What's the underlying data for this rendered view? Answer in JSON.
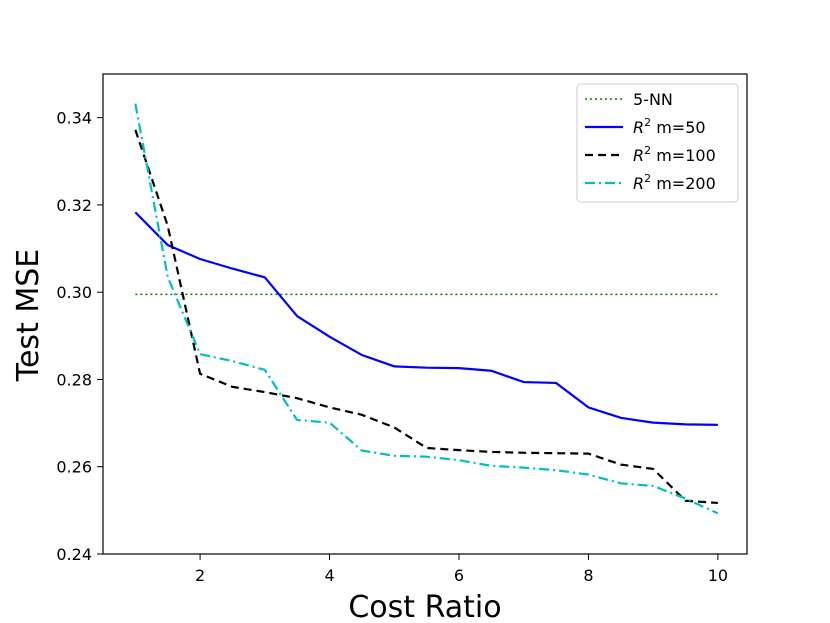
{
  "chart_data": {
    "type": "line",
    "title": "",
    "xlabel": "Cost Ratio",
    "ylabel": "Test MSE",
    "xlim": [
      0.5,
      10.45
    ],
    "ylim": [
      0.24,
      0.35
    ],
    "xticks": [
      2,
      4,
      6,
      8,
      10
    ],
    "xtick_labels": [
      "2",
      "4",
      "6",
      "8",
      "10"
    ],
    "yticks": [
      0.24,
      0.26,
      0.28,
      0.3,
      0.32,
      0.34
    ],
    "ytick_labels": [
      "0.24",
      "0.26",
      "0.28",
      "0.30",
      "0.32",
      "0.34"
    ],
    "grid": false,
    "legend_position": "top-right",
    "series": [
      {
        "name": "5-NN",
        "legend_prefix": "",
        "legend_suffix": "5-NN",
        "color": "#008000",
        "style": "dotted",
        "x": [
          1,
          10
        ],
        "values": [
          0.2995,
          0.2995
        ]
      },
      {
        "name": "R^2 m=50",
        "legend_prefix": "R",
        "legend_sup": "2",
        "legend_suffix": " m=50",
        "color": "#0000ff",
        "style": "solid",
        "x": [
          1,
          1.5,
          2,
          2.5,
          3,
          3.5,
          4,
          4.5,
          5,
          5.5,
          6,
          6.5,
          7,
          7.5,
          8,
          8.5,
          9,
          9.5,
          10
        ],
        "values": [
          0.3183,
          0.3108,
          0.3076,
          0.3054,
          0.3034,
          0.2945,
          0.2898,
          0.2856,
          0.283,
          0.2827,
          0.2826,
          0.282,
          0.2794,
          0.2792,
          0.2736,
          0.2712,
          0.2701,
          0.2697,
          0.2696
        ]
      },
      {
        "name": "R^2 m=100",
        "legend_prefix": "R",
        "legend_sup": "2",
        "legend_suffix": " m=100",
        "color": "#000000",
        "style": "dashed",
        "x": [
          1,
          1.5,
          2,
          2.5,
          3,
          3.5,
          4,
          4.5,
          5,
          5.5,
          6,
          6.5,
          7,
          7.5,
          8,
          8.5,
          9,
          9.5,
          10
        ],
        "values": [
          0.3372,
          0.3152,
          0.2813,
          0.2783,
          0.2771,
          0.2757,
          0.2736,
          0.2719,
          0.269,
          0.2643,
          0.2638,
          0.2634,
          0.2632,
          0.2631,
          0.263,
          0.2605,
          0.2595,
          0.2522,
          0.2517
        ]
      },
      {
        "name": "R^2 m=200",
        "legend_prefix": "R",
        "legend_sup": "2",
        "legend_suffix": " m=200",
        "color": "#00bfbf",
        "style": "dashdot",
        "x": [
          1,
          1.5,
          2,
          2.5,
          3,
          3.5,
          4,
          4.5,
          5,
          5.5,
          6,
          6.5,
          7,
          7.5,
          8,
          8.5,
          9,
          9.5,
          10
        ],
        "values": [
          0.3432,
          0.3035,
          0.2858,
          0.2842,
          0.2822,
          0.2707,
          0.2701,
          0.2637,
          0.2625,
          0.2623,
          0.2615,
          0.2602,
          0.2598,
          0.2592,
          0.2582,
          0.2562,
          0.2556,
          0.2527,
          0.2493
        ]
      }
    ]
  }
}
